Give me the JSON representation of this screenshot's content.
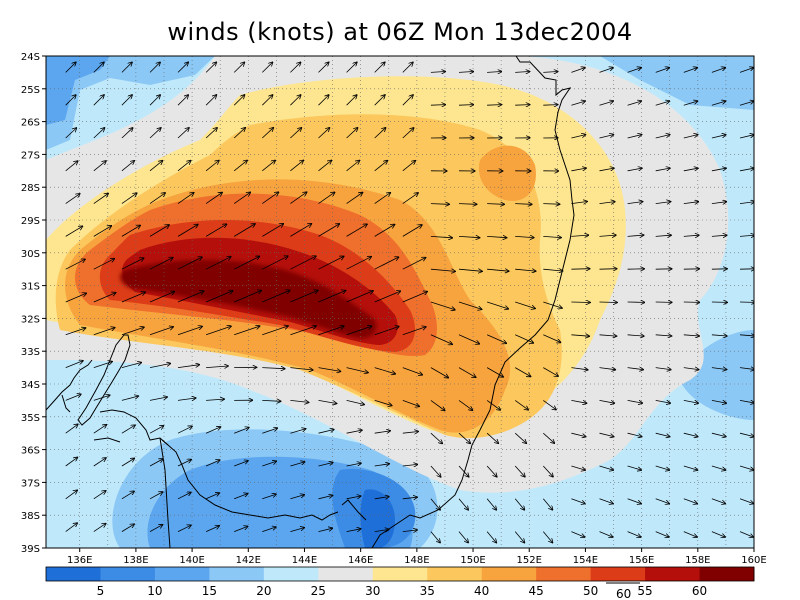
{
  "title": "winds (knots) at 06Z Mon 13dec2004",
  "lat_labels": [
    "24S",
    "25S",
    "26S",
    "27S",
    "28S",
    "29S",
    "30S",
    "31S",
    "32S",
    "33S",
    "34S",
    "35S",
    "36S",
    "37S",
    "38S",
    "39S"
  ],
  "lon_labels": [
    "136E",
    "138E",
    "140E",
    "142E",
    "144E",
    "146E",
    "148E",
    "150E",
    "152E",
    "154E",
    "156E",
    "158E",
    "160E"
  ],
  "colorbar": {
    "labels": [
      "5",
      "10",
      "15",
      "20",
      "25",
      "30",
      "35",
      "40",
      "45",
      "50",
      "55",
      "60"
    ],
    "colors": [
      "#1f6fd8",
      "#3c8ce6",
      "#5ba6ef",
      "#8cc8f5",
      "#bfe9fb",
      "#e6e6e6",
      "#fde68f",
      "#fcc85d",
      "#f7a43f",
      "#ef6f2c",
      "#dc3c17",
      "#b40f0a",
      "#800000"
    ]
  },
  "vector_reference": {
    "value": "60"
  },
  "colors": {
    "coast": "#000000",
    "grid": "#555555"
  }
}
